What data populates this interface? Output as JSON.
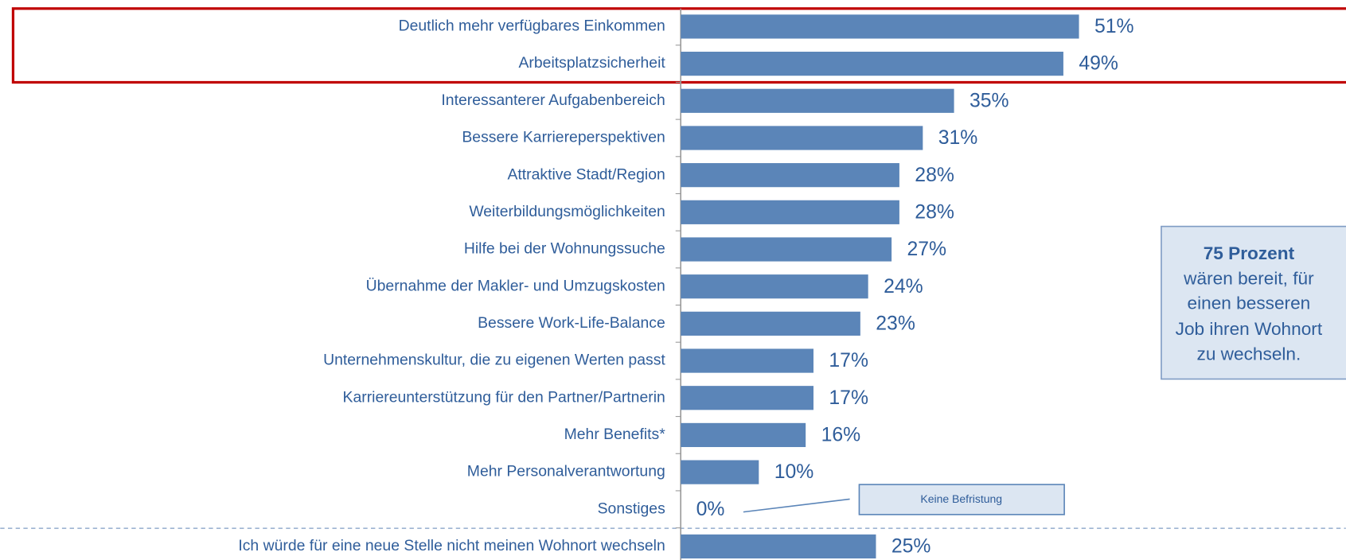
{
  "chart_data": {
    "type": "bar",
    "orientation": "horizontal",
    "color": "#5b85b8",
    "categories": [
      "Deutlich mehr verfügbares Einkommen",
      "Arbeitsplatzsicherheit",
      "Interessanterer Aufgabenbereich",
      "Bessere Karriereperspektiven",
      "Attraktive Stadt/Region",
      "Weiterbildungsmöglichkeiten",
      "Hilfe bei der Wohnungssuche",
      "Übernahme der Makler- und Umzugskosten",
      "Bessere Work-Life-Balance",
      "Unternehmenskultur, die zu eigenen Werten passt",
      "Karriereunterstützung für den Partner/Partnerin",
      "Mehr Benefits*",
      "Mehr Personalverantwortung",
      "Sonstiges",
      "Ich würde für eine neue Stelle nicht meinen Wohnort wechseln"
    ],
    "values": [
      51,
      49,
      35,
      31,
      28,
      28,
      27,
      24,
      23,
      17,
      17,
      16,
      10,
      0,
      25
    ],
    "value_labels": [
      "51%",
      "49%",
      "35%",
      "31%",
      "28%",
      "28%",
      "27%",
      "24%",
      "23%",
      "17%",
      "17%",
      "16%",
      "10%",
      "0%",
      "25%"
    ],
    "annotations": [
      "Keine Befristung"
    ],
    "callout": {
      "title": "75 Prozent",
      "lines": [
        "wären bereit, für",
        "einen besseren",
        "Job ihren Wohnort",
        "zu wechseln."
      ]
    }
  }
}
